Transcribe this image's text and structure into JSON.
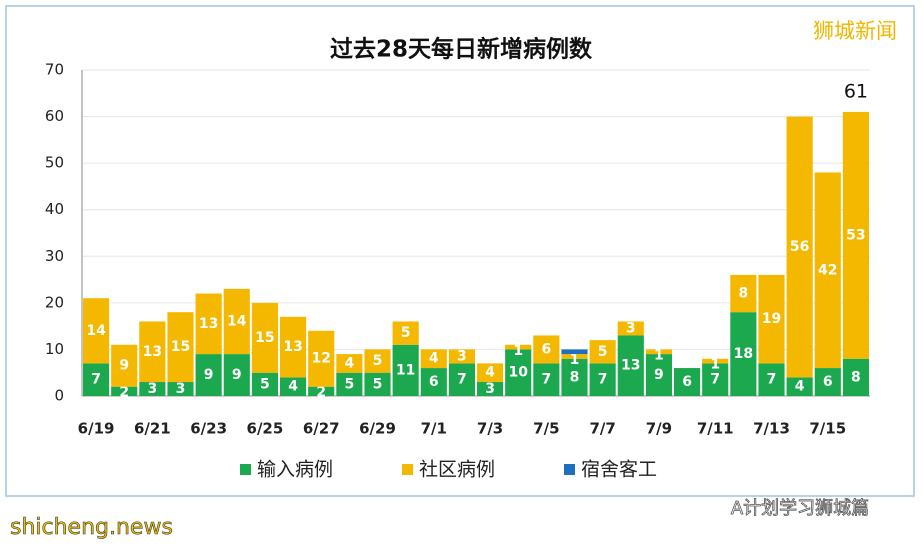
{
  "chart_data": {
    "type": "stacked-bar",
    "title": "过去28天每日新增病例数",
    "categories": [
      "6/19",
      null,
      "6/21",
      null,
      "6/23",
      null,
      "6/25",
      null,
      "6/27",
      null,
      "6/29",
      null,
      "7/1",
      null,
      "7/3",
      null,
      "7/5",
      null,
      "7/7",
      null,
      "7/9",
      null,
      "7/11",
      null,
      "7/13",
      null,
      "7/15",
      null
    ],
    "series": [
      {
        "name": "输入病例",
        "color": "#1ba84f",
        "show_labels": true,
        "values": [
          7,
          2,
          3,
          3,
          9,
          9,
          5,
          4,
          2,
          5,
          5,
          11,
          6,
          7,
          3,
          10,
          7,
          8,
          7,
          13,
          9,
          6,
          7,
          18,
          7,
          4,
          6,
          8
        ]
      },
      {
        "name": "社区病例",
        "color": "#f5b800",
        "show_labels": true,
        "values": [
          14,
          9,
          13,
          15,
          13,
          14,
          15,
          13,
          12,
          4,
          5,
          5,
          4,
          3,
          4,
          1,
          6,
          1,
          5,
          3,
          1,
          0,
          1,
          8,
          19,
          56,
          42,
          53
        ]
      },
      {
        "name": "宿舍客工",
        "color": "#1f6fbf",
        "show_labels": false,
        "values": [
          0,
          0,
          0,
          0,
          0,
          0,
          0,
          0,
          0,
          0,
          0,
          0,
          0,
          0,
          0,
          0,
          0,
          1,
          0,
          0,
          0,
          0,
          0,
          0,
          0,
          0,
          0,
          0
        ]
      }
    ],
    "total_label": "61",
    "ylim": [
      0,
      70
    ],
    "yticks": [
      0,
      10,
      20,
      30,
      40,
      50,
      60,
      70
    ],
    "grid": true,
    "legend": "bottom",
    "watermark": "狮城新闻",
    "footer": "shicheng.news",
    "wechat": "A计划学习狮城篇"
  }
}
